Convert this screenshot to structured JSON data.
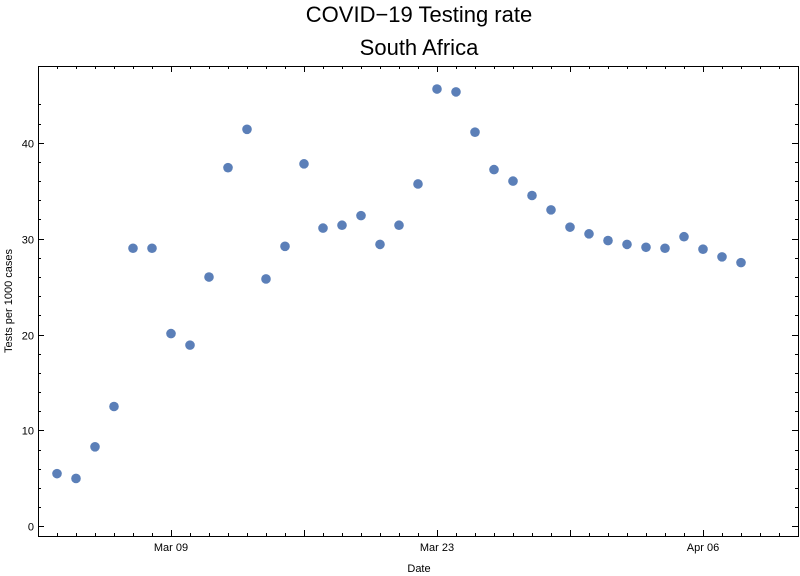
{
  "chart_data": {
    "type": "scatter",
    "title": "COVID−19 Testing rate",
    "subtitle": "South Africa",
    "xlabel": "Date",
    "ylabel": "Tests per 1000 cases",
    "xlim": [
      "2020-03-02",
      "2020-04-11"
    ],
    "ylim": [
      -1,
      48
    ],
    "x_ticks": [
      "2020-03-09",
      "2020-03-23",
      "2020-04-06"
    ],
    "x_tick_labels": [
      "Mar 09",
      "Mar 23",
      "Apr 06"
    ],
    "y_ticks": [
      0,
      10,
      20,
      30,
      40
    ],
    "y_tick_labels": [
      "0",
      "10",
      "20",
      "30",
      "40"
    ],
    "grid": false,
    "marker_color": "#5b7fb8",
    "series": [
      {
        "points": [
          {
            "x": "2020-03-03",
            "y": 5.5
          },
          {
            "x": "2020-03-04",
            "y": 5.0
          },
          {
            "x": "2020-03-05",
            "y": 8.3
          },
          {
            "x": "2020-03-06",
            "y": 12.5
          },
          {
            "x": "2020-03-07",
            "y": 29.0
          },
          {
            "x": "2020-03-08",
            "y": 29.0
          },
          {
            "x": "2020-03-09",
            "y": 20.1
          },
          {
            "x": "2020-03-10",
            "y": 18.9
          },
          {
            "x": "2020-03-11",
            "y": 26.0
          },
          {
            "x": "2020-03-12",
            "y": 37.4
          },
          {
            "x": "2020-03-13",
            "y": 41.4
          },
          {
            "x": "2020-03-14",
            "y": 25.8
          },
          {
            "x": "2020-03-15",
            "y": 29.2
          },
          {
            "x": "2020-03-16",
            "y": 37.8
          },
          {
            "x": "2020-03-17",
            "y": 31.1
          },
          {
            "x": "2020-03-18",
            "y": 31.4
          },
          {
            "x": "2020-03-19",
            "y": 32.4
          },
          {
            "x": "2020-03-20",
            "y": 29.4
          },
          {
            "x": "2020-03-21",
            "y": 31.4
          },
          {
            "x": "2020-03-22",
            "y": 35.7
          },
          {
            "x": "2020-03-23",
            "y": 45.6
          },
          {
            "x": "2020-03-24",
            "y": 45.3
          },
          {
            "x": "2020-03-25",
            "y": 41.1
          },
          {
            "x": "2020-03-26",
            "y": 37.2
          },
          {
            "x": "2020-03-27",
            "y": 36.0
          },
          {
            "x": "2020-03-28",
            "y": 34.5
          },
          {
            "x": "2020-03-29",
            "y": 33.0
          },
          {
            "x": "2020-03-30",
            "y": 31.2
          },
          {
            "x": "2020-03-31",
            "y": 30.5
          },
          {
            "x": "2020-04-01",
            "y": 29.8
          },
          {
            "x": "2020-04-02",
            "y": 29.4
          },
          {
            "x": "2020-04-03",
            "y": 29.1
          },
          {
            "x": "2020-04-04",
            "y": 29.0
          },
          {
            "x": "2020-04-05",
            "y": 30.2
          },
          {
            "x": "2020-04-06",
            "y": 28.9
          },
          {
            "x": "2020-04-07",
            "y": 28.1
          },
          {
            "x": "2020-04-08",
            "y": 27.5
          }
        ]
      }
    ]
  }
}
